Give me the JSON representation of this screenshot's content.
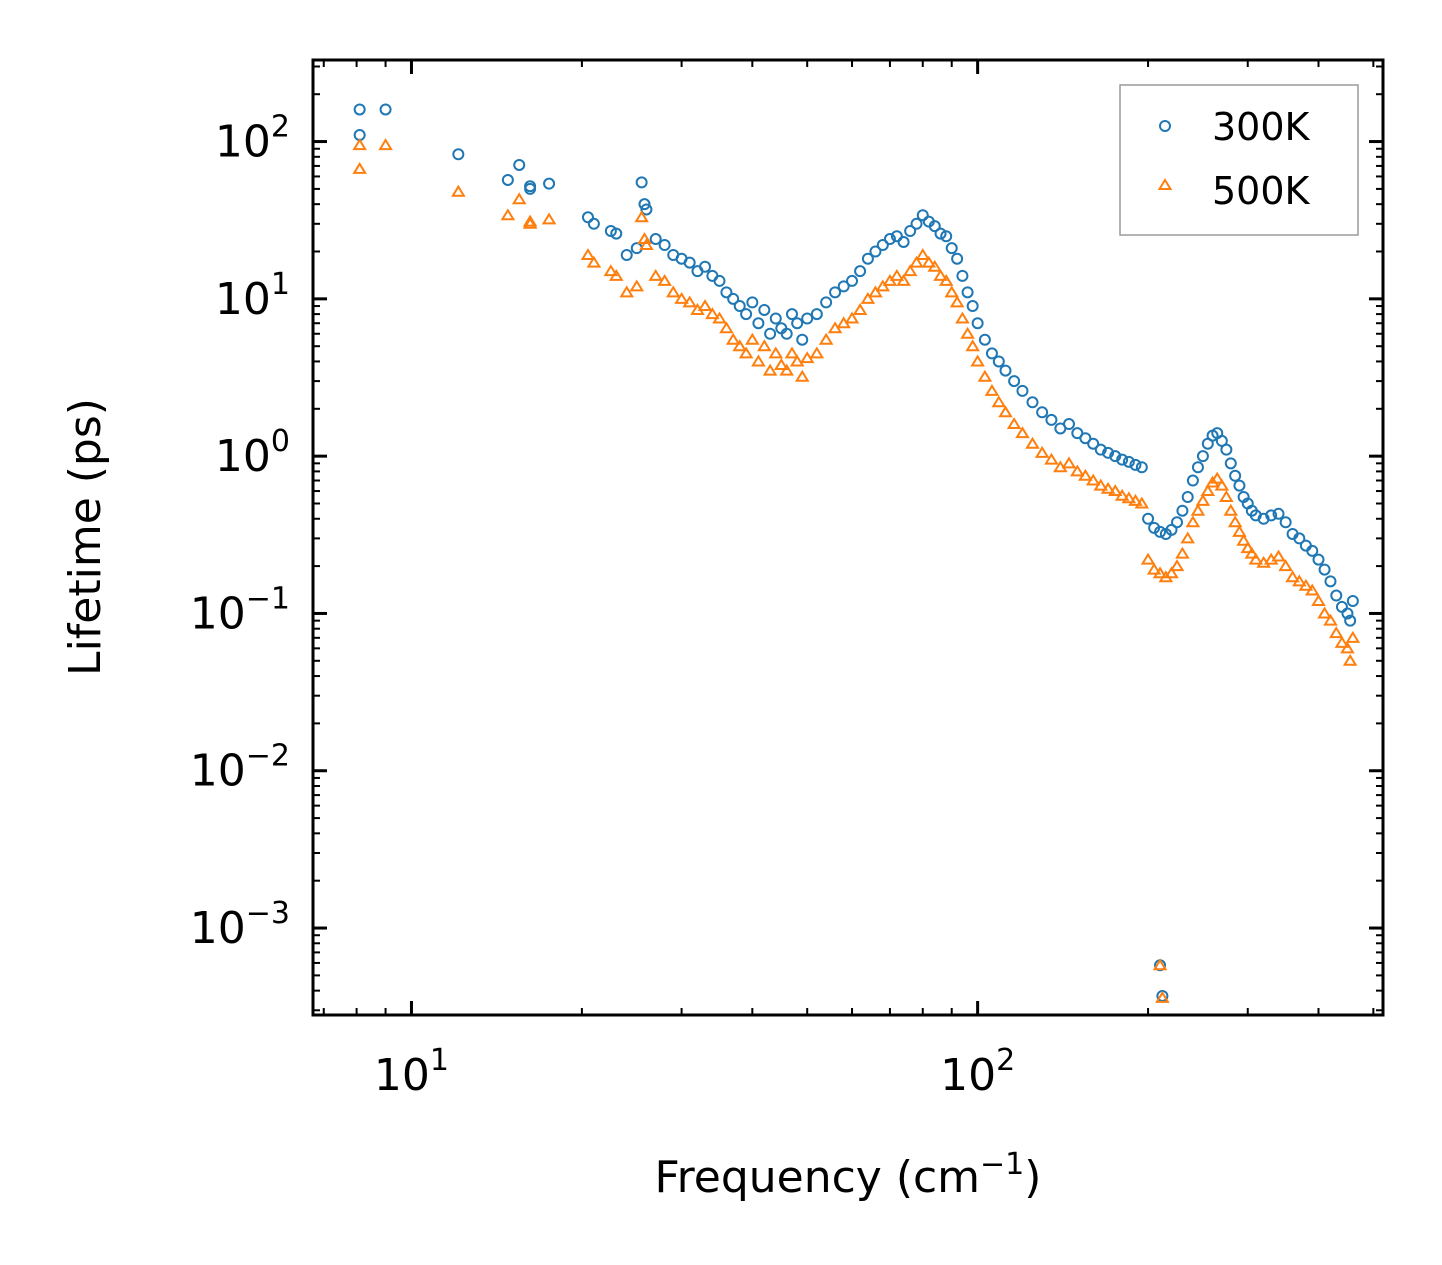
{
  "chart_data": {
    "type": "scatter",
    "xlabel": "Frequency (cm",
    "xlabel_sup": "−1",
    "xlabel_end": ")",
    "ylabel": "Lifetime (ps)",
    "xscale": "log",
    "yscale": "log",
    "xlim": [
      6.7,
      520
    ],
    "ylim": [
      0.00028,
      330
    ],
    "x_ticks": [
      {
        "value": 10,
        "base": "10",
        "exp": "1"
      },
      {
        "value": 100,
        "base": "10",
        "exp": "2"
      }
    ],
    "y_ticks": [
      {
        "value": 100,
        "base": "10",
        "exp": "2"
      },
      {
        "value": 10,
        "base": "10",
        "exp": "1"
      },
      {
        "value": 1,
        "base": "10",
        "exp": "0"
      },
      {
        "value": 0.1,
        "base": "10",
        "exp": "−1"
      },
      {
        "value": 0.01,
        "base": "10",
        "exp": "−2"
      },
      {
        "value": 0.001,
        "base": "10",
        "exp": "−3"
      }
    ],
    "legend_position": "top-right",
    "series": [
      {
        "name": "300K",
        "marker": "circle",
        "color": "#1f77b4",
        "x": [
          8.1,
          8.1,
          9.0,
          12.1,
          14.8,
          15.5,
          16.2,
          16.2,
          17.5,
          20.5,
          21.0,
          22.5,
          23.0,
          24.0,
          25.0,
          25.5,
          25.8,
          26.0,
          27.0,
          28.0,
          29.0,
          30.0,
          31.0,
          32.0,
          33.0,
          34.0,
          35.0,
          36.0,
          37.0,
          38.0,
          39.0,
          40.0,
          41.0,
          42.0,
          43.0,
          44.0,
          45.0,
          46.0,
          47.0,
          48.0,
          49.0,
          50.0,
          52.0,
          54.0,
          56.0,
          58.0,
          60.0,
          62.0,
          64.0,
          66.0,
          68.0,
          70.0,
          72.0,
          74.0,
          76.0,
          78.0,
          80.0,
          82.0,
          84.0,
          86.0,
          88.0,
          90.0,
          92.0,
          94.0,
          96.0,
          98.0,
          100.0,
          103.0,
          106.0,
          109.0,
          112.0,
          116.0,
          120.0,
          125.0,
          130.0,
          135.0,
          140.0,
          145.0,
          150.0,
          155.0,
          160.0,
          165.0,
          170.0,
          175.0,
          180.0,
          185.0,
          190.0,
          195.0,
          200.0,
          205.0,
          210.0,
          215.0,
          220.0,
          225.0,
          230.0,
          235.0,
          240.0,
          245.0,
          250.0,
          255.0,
          260.0,
          265.0,
          270.0,
          275.0,
          280.0,
          285.0,
          290.0,
          295.0,
          300.0,
          305.0,
          310.0,
          320.0,
          330.0,
          340.0,
          350.0,
          360.0,
          370.0,
          380.0,
          390.0,
          400.0,
          410.0,
          420.0,
          430.0,
          440.0,
          450.0,
          455.0,
          460.0,
          210.0,
          212.0
        ],
        "y": [
          160,
          110,
          160,
          83,
          57,
          71,
          52,
          50,
          54,
          33,
          30,
          27,
          26,
          19,
          21,
          55,
          40,
          37,
          24,
          22,
          19,
          18,
          17,
          15,
          16,
          14,
          13,
          11,
          10,
          9,
          8,
          9.5,
          7,
          8.5,
          6,
          7.5,
          6.5,
          6,
          8,
          7,
          5.5,
          7.5,
          8,
          9.5,
          11,
          12,
          13,
          15,
          18,
          20,
          22,
          24,
          25,
          23,
          27,
          30,
          34,
          31,
          29,
          26,
          25,
          21,
          18,
          14,
          11,
          9,
          7,
          5.5,
          4.5,
          4,
          3.5,
          3,
          2.6,
          2.2,
          1.9,
          1.7,
          1.5,
          1.6,
          1.4,
          1.3,
          1.2,
          1.1,
          1.05,
          1.0,
          0.95,
          0.92,
          0.88,
          0.85,
          0.4,
          0.35,
          0.33,
          0.32,
          0.34,
          0.38,
          0.45,
          0.55,
          0.7,
          0.85,
          1.0,
          1.2,
          1.35,
          1.4,
          1.25,
          1.1,
          0.9,
          0.75,
          0.65,
          0.55,
          0.5,
          0.45,
          0.42,
          0.4,
          0.42,
          0.43,
          0.38,
          0.32,
          0.3,
          0.27,
          0.25,
          0.22,
          0.19,
          0.16,
          0.13,
          0.11,
          0.1,
          0.09,
          0.12,
          0.00058,
          0.00037
        ]
      },
      {
        "name": "500K",
        "marker": "triangle",
        "color": "#ff7f0e",
        "x": [
          8.1,
          8.1,
          9.0,
          12.1,
          14.8,
          15.5,
          16.2,
          16.2,
          17.5,
          20.5,
          21.0,
          22.5,
          23.0,
          24.0,
          25.0,
          25.5,
          25.8,
          26.0,
          27.0,
          28.0,
          29.0,
          30.0,
          31.0,
          32.0,
          33.0,
          34.0,
          35.0,
          36.0,
          37.0,
          38.0,
          39.0,
          40.0,
          41.0,
          42.0,
          43.0,
          44.0,
          45.0,
          46.0,
          47.0,
          48.0,
          49.0,
          50.0,
          52.0,
          54.0,
          56.0,
          58.0,
          60.0,
          62.0,
          64.0,
          66.0,
          68.0,
          70.0,
          72.0,
          74.0,
          76.0,
          78.0,
          80.0,
          82.0,
          84.0,
          86.0,
          88.0,
          90.0,
          92.0,
          94.0,
          96.0,
          98.0,
          100.0,
          103.0,
          106.0,
          109.0,
          112.0,
          116.0,
          120.0,
          125.0,
          130.0,
          135.0,
          140.0,
          145.0,
          150.0,
          155.0,
          160.0,
          165.0,
          170.0,
          175.0,
          180.0,
          185.0,
          190.0,
          195.0,
          200.0,
          205.0,
          210.0,
          215.0,
          220.0,
          225.0,
          230.0,
          235.0,
          240.0,
          245.0,
          250.0,
          255.0,
          260.0,
          265.0,
          270.0,
          275.0,
          280.0,
          285.0,
          290.0,
          295.0,
          300.0,
          305.0,
          310.0,
          320.0,
          330.0,
          340.0,
          350.0,
          360.0,
          370.0,
          380.0,
          390.0,
          400.0,
          410.0,
          420.0,
          430.0,
          440.0,
          450.0,
          455.0,
          460.0,
          210.0,
          212.0
        ],
        "y": [
          95,
          67,
          95,
          48,
          34,
          43,
          31,
          30,
          32,
          19,
          17,
          15,
          14,
          11,
          12,
          33,
          24,
          22,
          14,
          13,
          11,
          10,
          9.5,
          8.5,
          9,
          8,
          7.5,
          6.5,
          5.5,
          5,
          4.5,
          5.5,
          4,
          5,
          3.5,
          4.5,
          3.8,
          3.5,
          4.5,
          4,
          3.2,
          4.2,
          4.5,
          5.5,
          6.5,
          7,
          7.5,
          8.5,
          10,
          11,
          12,
          13,
          14,
          13,
          15,
          17,
          19,
          17,
          16,
          14,
          13,
          11,
          9.5,
          7.5,
          6,
          5,
          4,
          3.2,
          2.6,
          2.2,
          1.9,
          1.6,
          1.4,
          1.2,
          1.05,
          0.95,
          0.85,
          0.9,
          0.8,
          0.75,
          0.7,
          0.65,
          0.62,
          0.6,
          0.56,
          0.54,
          0.52,
          0.5,
          0.22,
          0.19,
          0.18,
          0.17,
          0.18,
          0.2,
          0.24,
          0.3,
          0.38,
          0.45,
          0.52,
          0.6,
          0.68,
          0.72,
          0.65,
          0.55,
          0.45,
          0.38,
          0.33,
          0.29,
          0.26,
          0.24,
          0.22,
          0.21,
          0.22,
          0.23,
          0.2,
          0.17,
          0.16,
          0.15,
          0.14,
          0.12,
          0.1,
          0.09,
          0.075,
          0.065,
          0.06,
          0.05,
          0.07,
          0.00058,
          0.00036
        ]
      }
    ]
  }
}
